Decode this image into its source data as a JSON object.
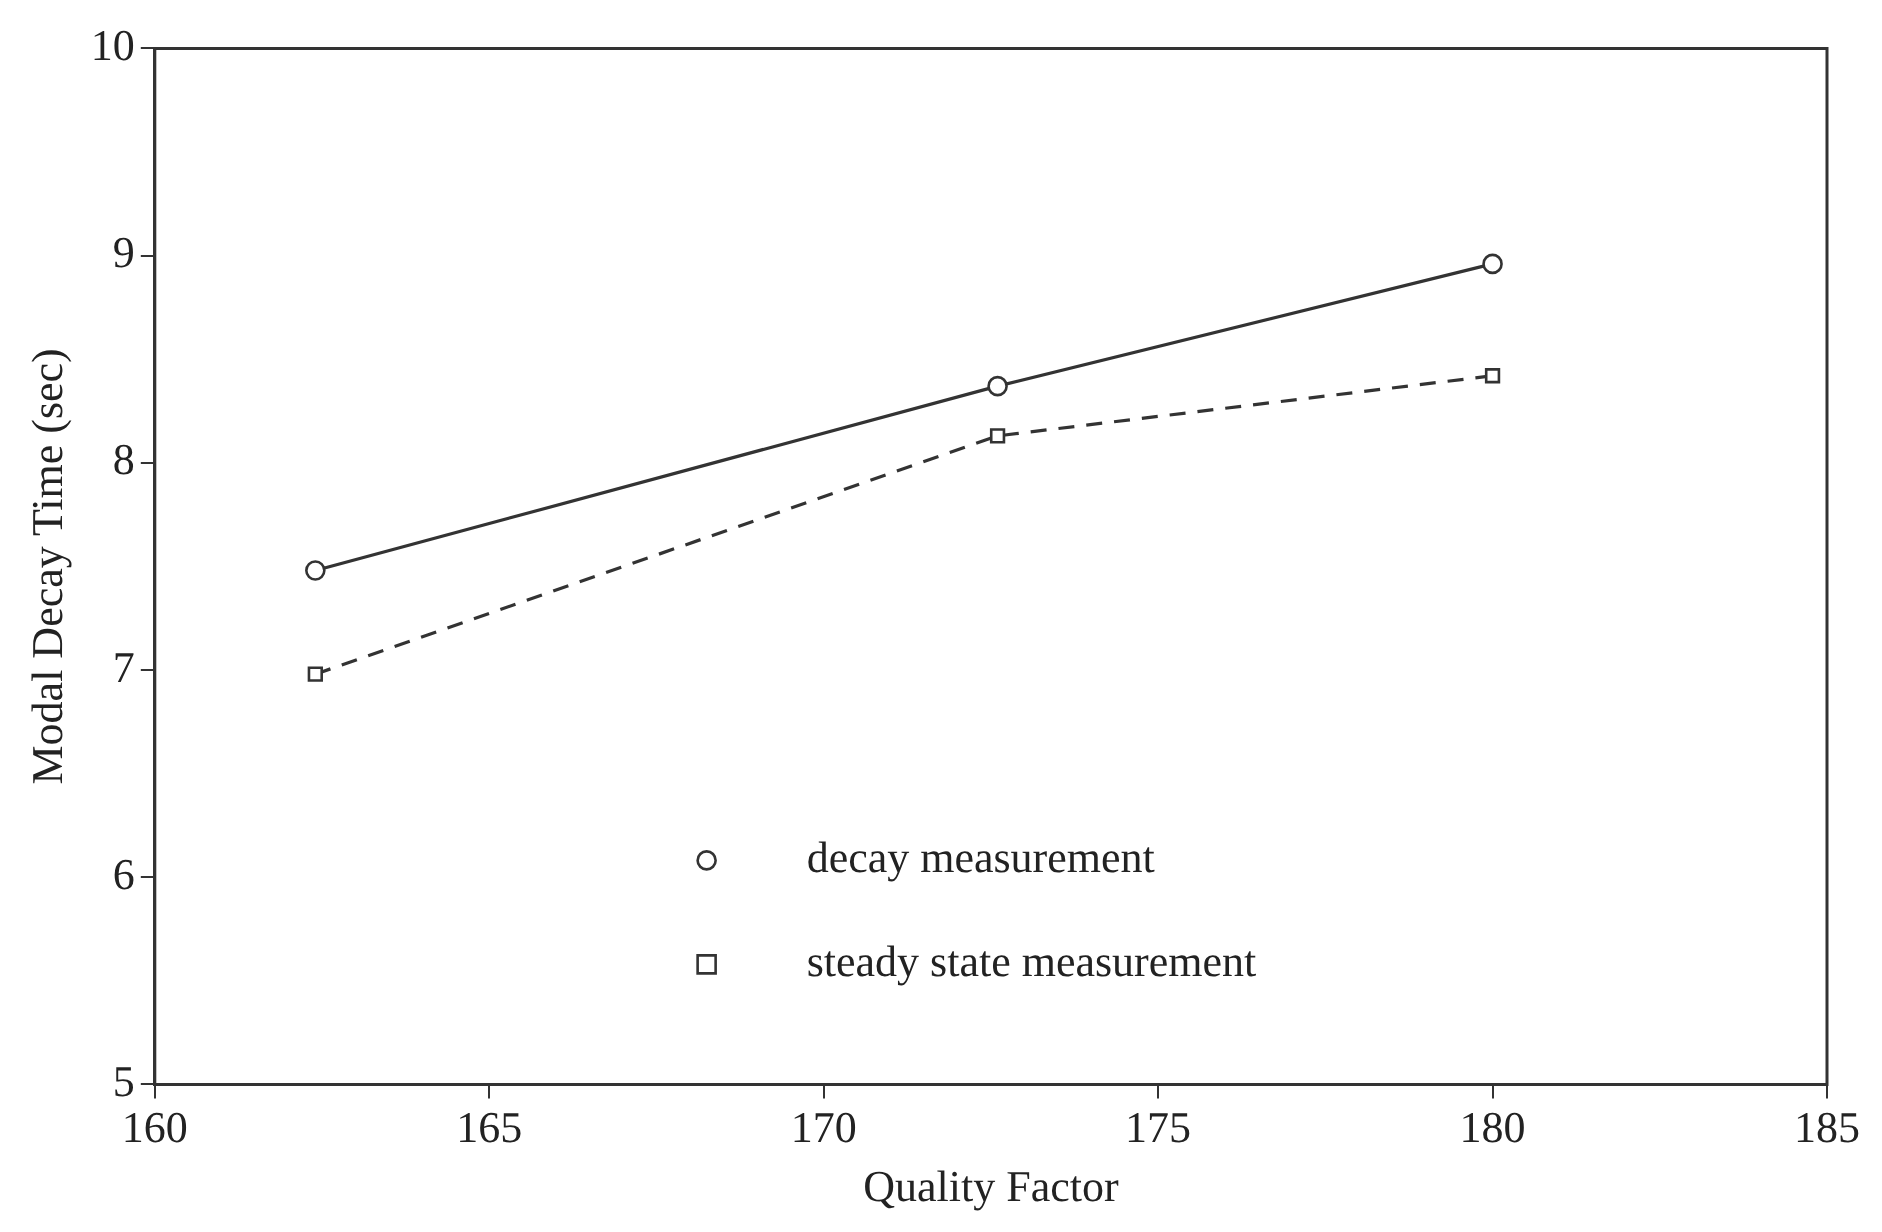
{
  "chart_data": {
    "type": "line",
    "xlabel": "Quality Factor",
    "ylabel": "Modal Decay Time (sec)",
    "x": [
      162.4,
      172.6,
      180
    ],
    "xlim": [
      160,
      185
    ],
    "xticks": [
      160,
      165,
      170,
      175,
      180,
      185
    ],
    "ylim": [
      5,
      10
    ],
    "yticks": [
      5,
      6,
      7,
      8,
      9,
      10
    ],
    "grid": false,
    "legend": "bottom",
    "series": [
      {
        "name": "decay measurement",
        "color": "#333333",
        "marker": "circle",
        "line_style": "solid",
        "values": [
          7.48,
          8.37,
          8.96
        ]
      },
      {
        "name": "steady state measurement",
        "color": "#333333",
        "marker": "square",
        "line_style": "dashed",
        "values": [
          6.98,
          8.13,
          8.42
        ]
      }
    ]
  }
}
